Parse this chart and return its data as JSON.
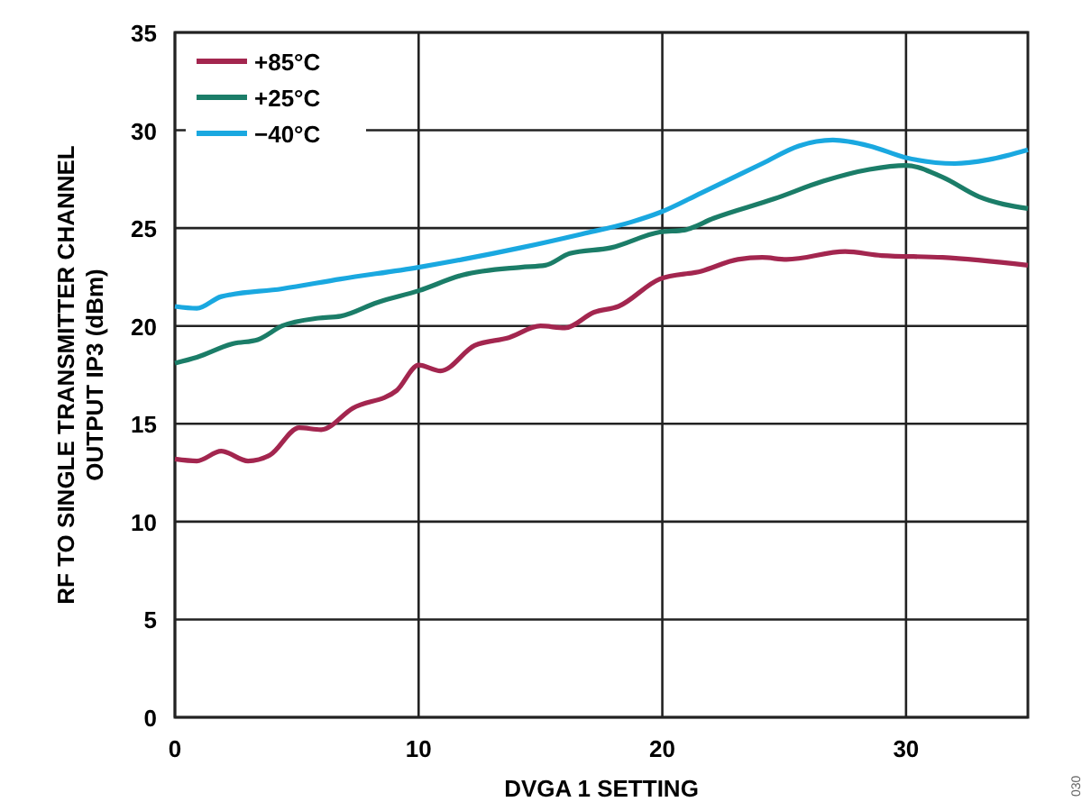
{
  "chart_data": {
    "type": "line",
    "xlabel": "DVGA 1 SETTING",
    "ylabel": "RF TO SINGLE TRANSMITTER CHANNEL OUTPUT IP3 (dBm)",
    "xlim": [
      0,
      35
    ],
    "ylim": [
      0,
      35
    ],
    "xticks": [
      0,
      10,
      20,
      30
    ],
    "yticks": [
      0,
      5,
      10,
      15,
      20,
      25,
      30,
      35
    ],
    "grid": true,
    "legend": "top left",
    "line_style": "solid",
    "annotations": [
      "030"
    ],
    "series": [
      {
        "name": "+85°C",
        "color": "#a3264f",
        "x": [
          0,
          0.9,
          1.9,
          3,
          3.9,
          5.1,
          6,
          7.3,
          9.1,
          10,
          10.9,
          12.3,
          13.7,
          15,
          16,
          17.2,
          18.2,
          19.9,
          21.6,
          23.1,
          24.1,
          25.1,
          27.5,
          29,
          31.5,
          35
        ],
        "values": [
          13.2,
          13.1,
          13.6,
          13.1,
          13.4,
          14.8,
          14.7,
          15.8,
          16.7,
          18,
          17.7,
          19,
          19.4,
          20,
          19.9,
          20.7,
          21,
          22.4,
          22.8,
          23.4,
          23.5,
          23.4,
          23.8,
          23.6,
          23.5,
          23.1
        ]
      },
      {
        "name": "+25°C",
        "color": "#1b7d68",
        "x": [
          0,
          0.9,
          2.4,
          3.4,
          4.4,
          5.9,
          6.8,
          8.3,
          10,
          11.8,
          14.2,
          15.2,
          16.2,
          17.9,
          19.9,
          20.9,
          22.1,
          24.6,
          26.6,
          28.5,
          30,
          31.5,
          33,
          35
        ],
        "values": [
          18.1,
          18.4,
          19.1,
          19.3,
          20,
          20.4,
          20.5,
          21.2,
          21.8,
          22.6,
          23,
          23.1,
          23.7,
          24,
          24.8,
          24.9,
          25.5,
          26.5,
          27.4,
          28,
          28.2,
          27.6,
          26.6,
          26
        ]
      },
      {
        "name": "−40°C",
        "color": "#1aa8e0",
        "x": [
          0,
          0.9,
          1.9,
          4.4,
          6.8,
          10,
          11.8,
          14.2,
          16.7,
          18.7,
          19.9,
          21.6,
          24.1,
          25.6,
          27,
          28.5,
          30,
          32,
          33.4,
          35
        ],
        "values": [
          21,
          20.9,
          21.5,
          21.9,
          22.4,
          23,
          23.4,
          24,
          24.7,
          25.3,
          25.8,
          26.8,
          28.3,
          29.2,
          29.5,
          29.2,
          28.6,
          28.3,
          28.5,
          29
        ]
      }
    ]
  }
}
